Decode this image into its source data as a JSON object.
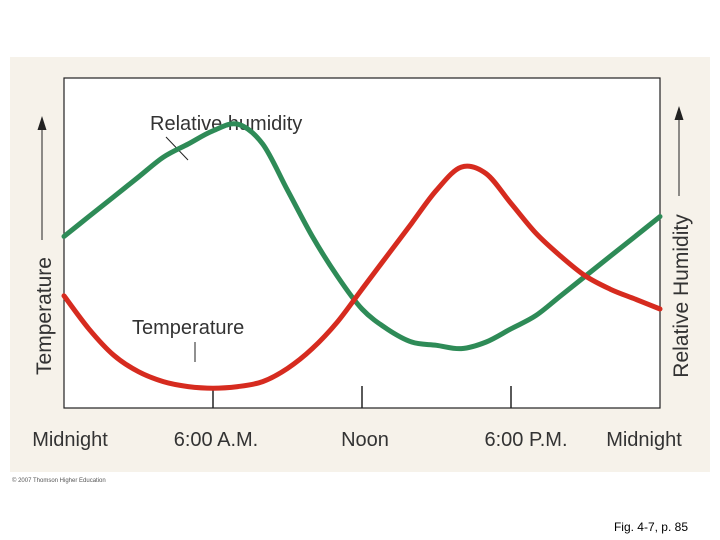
{
  "chart_data": {
    "type": "line",
    "title": "",
    "xlabel": "",
    "ylabel_left": "Temperature",
    "ylabel_right": "Relative Humidity",
    "x_ticks": [
      "Midnight",
      "6:00 A.M.",
      "Noon",
      "6:00 P.M.",
      "Midnight"
    ],
    "x_tick_hours": [
      0,
      6,
      12,
      18,
      24
    ],
    "xlim": [
      0,
      24
    ],
    "ylim": [
      0,
      1
    ],
    "grid": false,
    "legend": "inline labels",
    "series": [
      {
        "name": "Relative humidity",
        "color": "#2e8b57",
        "x": [
          0,
          1,
          2,
          3,
          4,
          5,
          6,
          7,
          8,
          9,
          10,
          11,
          12,
          13,
          14,
          15,
          16,
          17,
          18,
          19,
          20,
          21,
          22,
          23,
          24
        ],
        "y": [
          0.52,
          0.58,
          0.64,
          0.7,
          0.76,
          0.8,
          0.84,
          0.86,
          0.8,
          0.66,
          0.52,
          0.4,
          0.3,
          0.24,
          0.2,
          0.19,
          0.18,
          0.2,
          0.24,
          0.28,
          0.34,
          0.4,
          0.46,
          0.52,
          0.58
        ]
      },
      {
        "name": "Temperature",
        "color": "#d62b1f",
        "x": [
          0,
          1,
          2,
          3,
          4,
          5,
          6,
          7,
          8,
          9,
          10,
          11,
          12,
          13,
          14,
          15,
          16,
          17,
          18,
          19,
          20,
          21,
          22,
          23,
          24
        ],
        "y": [
          0.34,
          0.24,
          0.16,
          0.11,
          0.08,
          0.065,
          0.06,
          0.065,
          0.08,
          0.12,
          0.18,
          0.26,
          0.36,
          0.46,
          0.56,
          0.66,
          0.73,
          0.71,
          0.62,
          0.53,
          0.46,
          0.4,
          0.36,
          0.33,
          0.3
        ]
      }
    ],
    "annotations": [
      "Relative humidity",
      "Temperature"
    ]
  },
  "copyright": "© 2007 Thomson Higher Education",
  "caption": "Fig. 4-7, p. 85"
}
